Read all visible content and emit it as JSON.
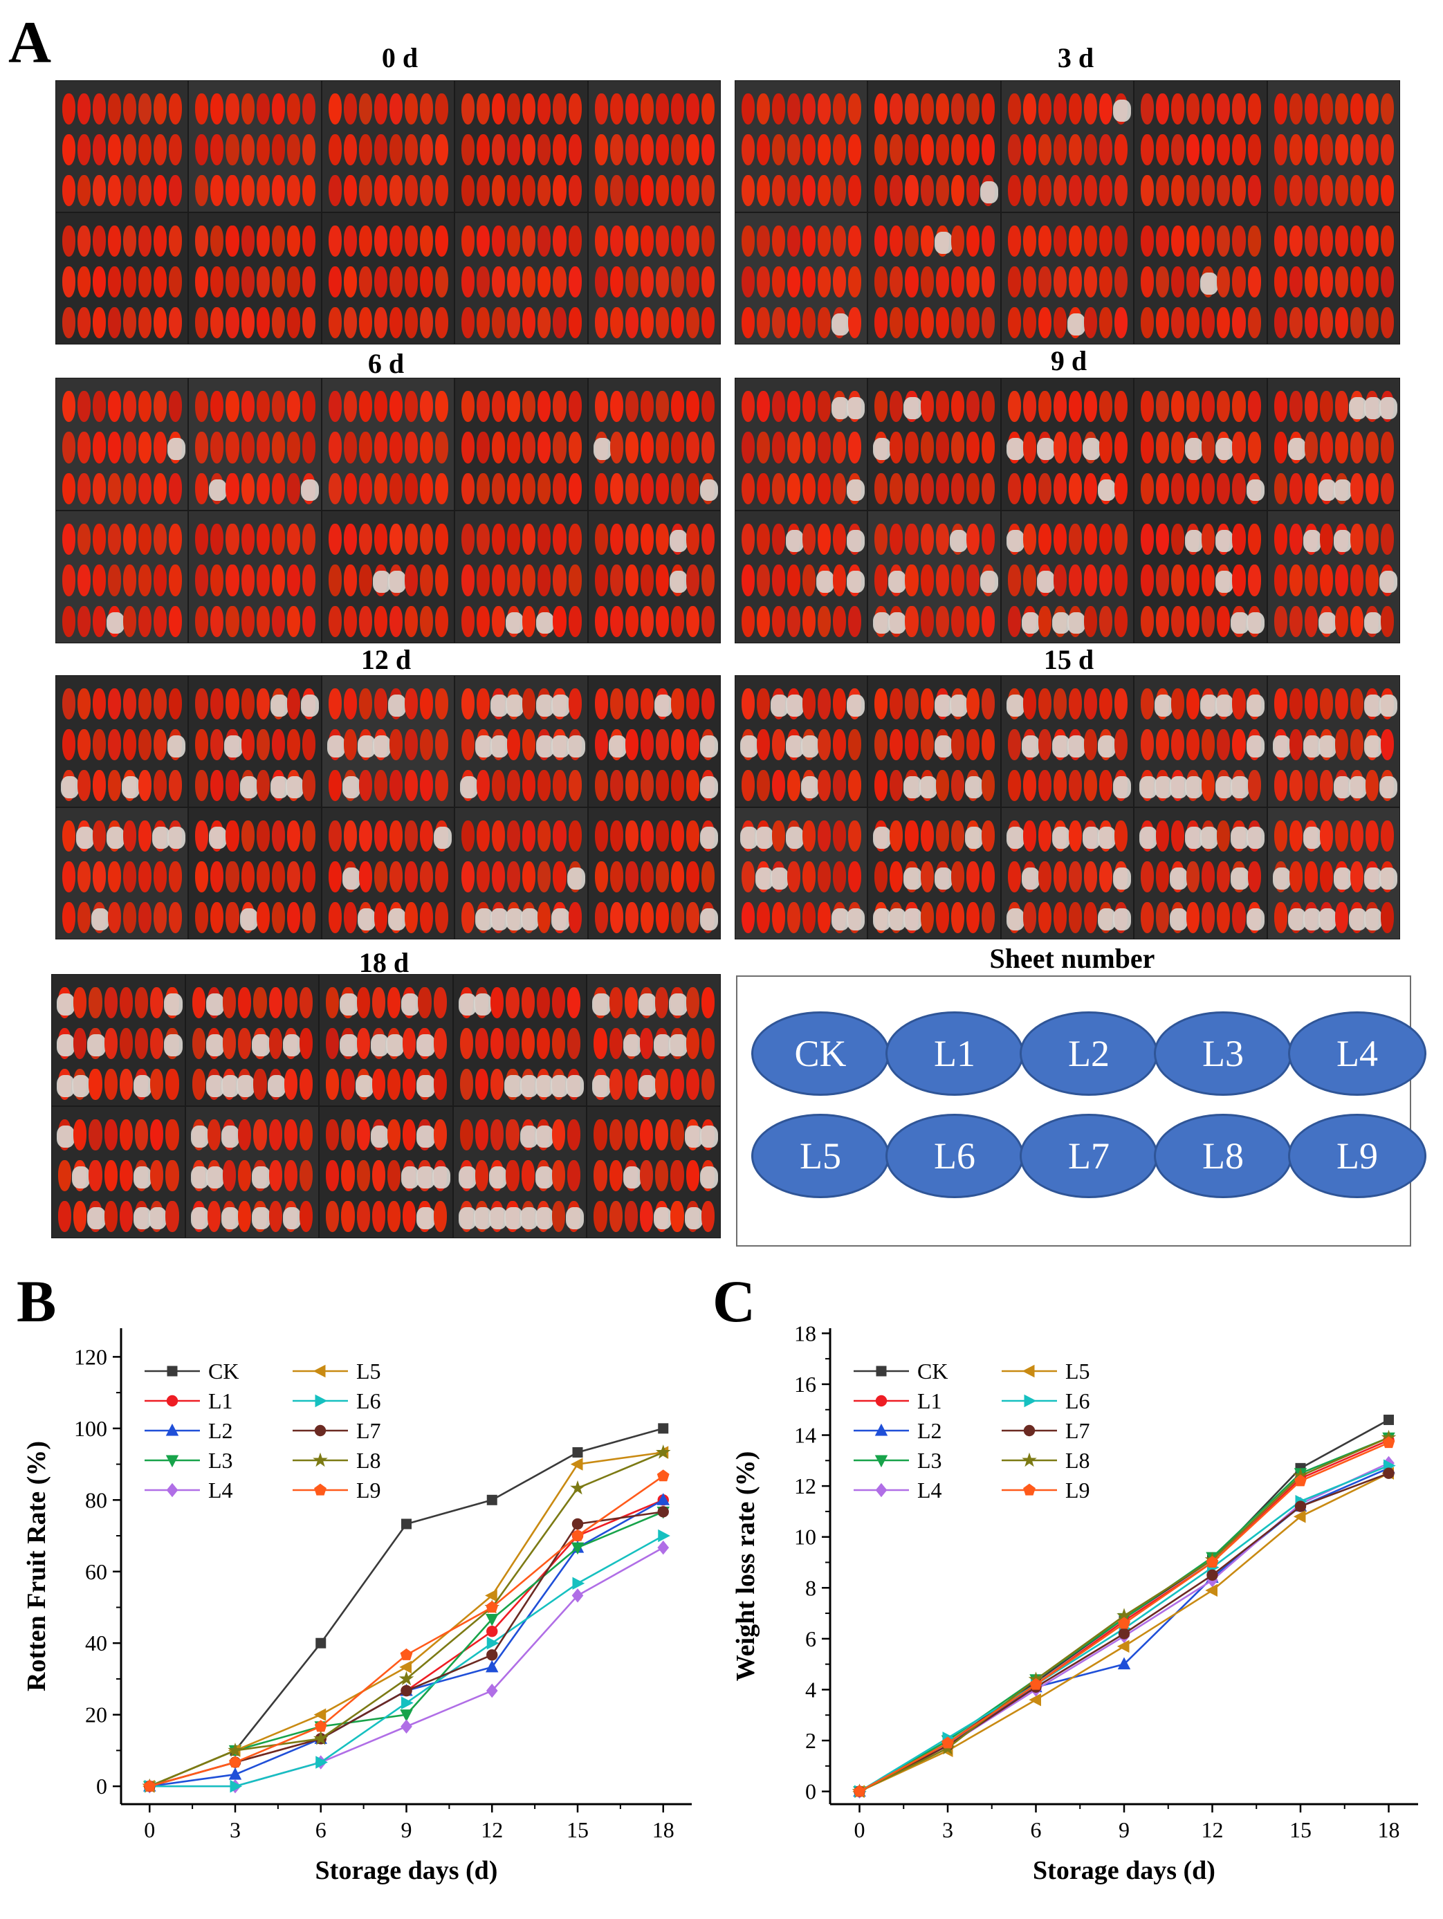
{
  "panel_labels": {
    "a": "A",
    "b": "B",
    "c": "C"
  },
  "photo_titles": [
    "0 d",
    "3 d",
    "6 d",
    "9 d",
    "12 d",
    "15 d",
    "18 d"
  ],
  "sheet_legend": {
    "title": "Sheet number",
    "labels": [
      "CK",
      "L1",
      "L2",
      "L3",
      "L4",
      "L5",
      "L6",
      "L7",
      "L8",
      "L9"
    ],
    "oval_color": "#4472c4"
  },
  "series_colors": {
    "CK": "#3a3a3a",
    "L1": "#ee1d24",
    "L2": "#1f4fd8",
    "L3": "#17a34a",
    "L4": "#b06ee6",
    "L5": "#c98a12",
    "L6": "#16c0c0",
    "L7": "#6b2a22",
    "L8": "#7c7a14",
    "L9": "#ff5a1a"
  },
  "series_markers": {
    "CK": "square",
    "L1": "circle",
    "L2": "triangle-up",
    "L3": "triangle-down",
    "L4": "diamond",
    "L5": "triangle-left",
    "L6": "triangle-right",
    "L7": "circle",
    "L8": "star",
    "L9": "pentagon"
  },
  "chart_data": [
    {
      "type": "line",
      "xlabel": "Storage days (d)",
      "ylabel": "Rotten Fruit Rate (%)",
      "x": [
        0,
        3,
        6,
        9,
        12,
        15,
        18
      ],
      "xlim": [
        -1,
        19
      ],
      "ylim": [
        -5,
        128
      ],
      "xticks": [
        0,
        3,
        6,
        9,
        12,
        15,
        18
      ],
      "yticks": [
        0,
        20,
        40,
        60,
        80,
        100,
        120
      ],
      "legend": "top-left",
      "series": [
        {
          "name": "CK",
          "values": [
            0,
            10,
            40,
            73.3,
            80,
            93.3,
            100
          ]
        },
        {
          "name": "L1",
          "values": [
            0,
            6.7,
            13.3,
            26.7,
            43.3,
            70,
            80
          ]
        },
        {
          "name": "L2",
          "values": [
            0,
            3.3,
            13.3,
            26.7,
            33.3,
            66.7,
            80
          ]
        },
        {
          "name": "L3",
          "values": [
            0,
            10,
            16.7,
            20,
            46.7,
            66.7,
            76.7
          ]
        },
        {
          "name": "L4",
          "values": [
            0,
            0,
            6.7,
            16.7,
            26.7,
            53.3,
            66.7
          ]
        },
        {
          "name": "L5",
          "values": [
            0,
            10,
            20,
            33.3,
            53.3,
            90,
            93.3
          ]
        },
        {
          "name": "L6",
          "values": [
            0,
            0,
            6.7,
            23.3,
            40,
            56.7,
            70
          ]
        },
        {
          "name": "L7",
          "values": [
            0,
            6.7,
            13.3,
            26.7,
            36.7,
            73.3,
            76.7
          ]
        },
        {
          "name": "L8",
          "values": [
            0,
            10,
            13.3,
            30,
            50,
            83.3,
            93.3
          ]
        },
        {
          "name": "L9",
          "values": [
            0,
            6.7,
            16.7,
            36.7,
            50,
            70,
            86.7
          ]
        }
      ]
    },
    {
      "type": "line",
      "xlabel": "Storage days (d)",
      "ylabel": "Weight loss rate (%)",
      "x": [
        0,
        3,
        6,
        9,
        12,
        15,
        18
      ],
      "xlim": [
        -1,
        19
      ],
      "ylim": [
        -0.5,
        18.2
      ],
      "xticks": [
        0,
        3,
        6,
        9,
        12,
        15,
        18
      ],
      "yticks": [
        0,
        2,
        4,
        6,
        8,
        10,
        12,
        14,
        16,
        18
      ],
      "legend": "top-left",
      "series": [
        {
          "name": "CK",
          "values": [
            0,
            1.9,
            4.3,
            6.8,
            9.1,
            12.7,
            14.6
          ]
        },
        {
          "name": "L1",
          "values": [
            0,
            1.9,
            4.2,
            6.7,
            9.0,
            12.3,
            13.8
          ]
        },
        {
          "name": "L2",
          "values": [
            0,
            1.9,
            4.1,
            5.0,
            8.4,
            11.2,
            12.7
          ]
        },
        {
          "name": "L3",
          "values": [
            0,
            2.0,
            4.4,
            6.8,
            9.2,
            12.5,
            13.9
          ]
        },
        {
          "name": "L4",
          "values": [
            0,
            1.8,
            4.0,
            6.1,
            8.3,
            11.3,
            12.9
          ]
        },
        {
          "name": "L5",
          "values": [
            0,
            1.6,
            3.6,
            5.7,
            7.9,
            10.8,
            12.5
          ]
        },
        {
          "name": "L6",
          "values": [
            0,
            2.1,
            4.2,
            6.4,
            8.8,
            11.4,
            12.8
          ]
        },
        {
          "name": "L7",
          "values": [
            0,
            1.8,
            4.1,
            6.2,
            8.5,
            11.2,
            12.5
          ]
        },
        {
          "name": "L8",
          "values": [
            0,
            1.7,
            4.4,
            6.9,
            9.1,
            12.4,
            13.9
          ]
        },
        {
          "name": "L9",
          "values": [
            0,
            1.9,
            4.2,
            6.6,
            9.0,
            12.2,
            13.7
          ]
        }
      ]
    }
  ]
}
